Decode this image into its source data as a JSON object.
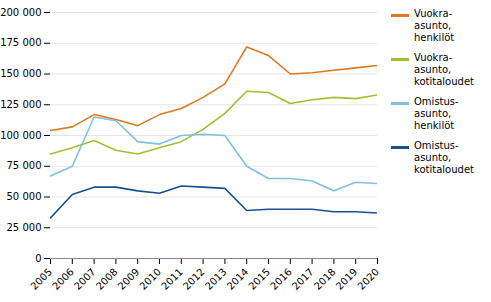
{
  "chart_data": {
    "type": "line",
    "x": [
      2005,
      2006,
      2007,
      2008,
      2009,
      2010,
      2011,
      2012,
      2013,
      2014,
      2015,
      2016,
      2017,
      2018,
      2019,
      2020
    ],
    "series": [
      {
        "name": "Vuokra-\nasunto,\nhenkilöt",
        "color": "#E07820",
        "values": [
          104000,
          107000,
          117000,
          113000,
          108000,
          117000,
          122000,
          131000,
          142000,
          172000,
          165000,
          150000,
          151000,
          153000,
          155000,
          157000
        ]
      },
      {
        "name": "Vuokra-\nasunto,\nkotitaloudet",
        "color": "#A0C030",
        "values": [
          85000,
          90000,
          96000,
          88000,
          85000,
          90000,
          95000,
          105000,
          118000,
          136000,
          135000,
          126000,
          129000,
          131000,
          130000,
          133000
        ]
      },
      {
        "name": "Omistus-\nasunto,\nhenkilöt",
        "color": "#80C0E0",
        "values": [
          67000,
          75000,
          115000,
          112000,
          95000,
          93000,
          100000,
          101000,
          100000,
          75000,
          65000,
          65000,
          63000,
          55000,
          62000,
          61000
        ]
      },
      {
        "name": "Omistus-\nasunto,\nkotitaloudet",
        "color": "#1A5090",
        "values": [
          33000,
          52000,
          58000,
          58000,
          55000,
          53000,
          59000,
          58000,
          57000,
          39000,
          40000,
          40000,
          40000,
          38000,
          38000,
          37000
        ]
      }
    ],
    "xlim": [
      2005,
      2020
    ],
    "xticks": [
      2005,
      2006,
      2007,
      2008,
      2009,
      2010,
      2011,
      2012,
      2013,
      2014,
      2015,
      2016,
      2017,
      2018,
      2019,
      2020
    ],
    "ylim": [
      0,
      200000
    ],
    "yticks": [
      0,
      {
        "value": 25000,
        "label": "25 000"
      },
      {
        "value": 50000,
        "label": "50 000"
      },
      {
        "value": 75000,
        "label": "75 000"
      },
      {
        "value": 100000,
        "label": "100 000"
      },
      {
        "value": 125000,
        "label": "125 000"
      },
      {
        "value": 150000,
        "label": "150 000"
      },
      {
        "value": 175000,
        "label": "175 000"
      },
      {
        "value": 200000,
        "label": "200 000"
      }
    ],
    "grid": true,
    "legend": "right"
  }
}
